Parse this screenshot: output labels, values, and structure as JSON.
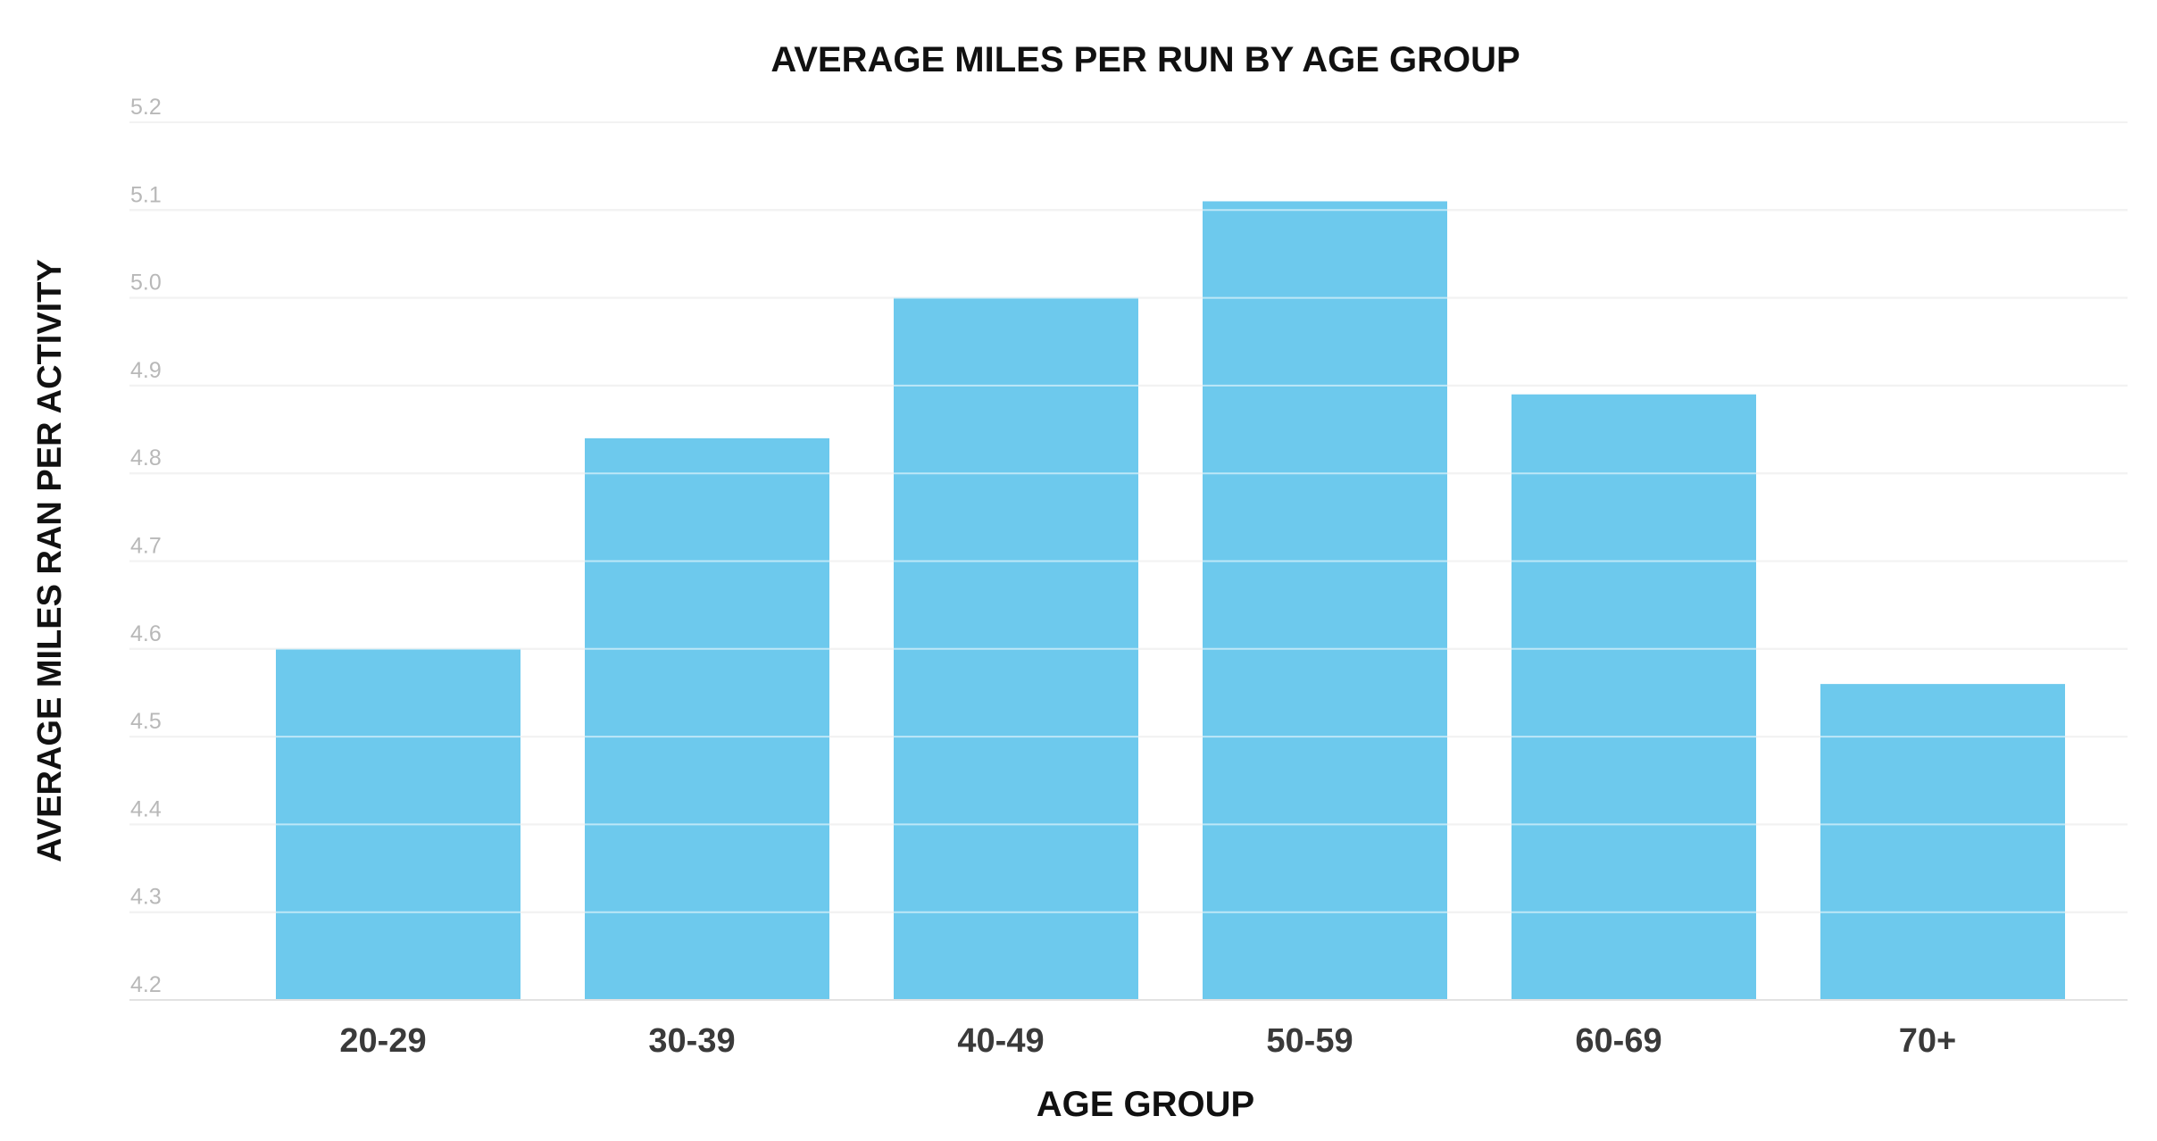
{
  "chart_data": {
    "type": "bar",
    "title": "AVERAGE MILES PER RUN BY AGE GROUP",
    "xlabel": "AGE GROUP",
    "ylabel": "AVERAGE MILES RAN PER ACTIVITY",
    "categories": [
      "20-29",
      "30-39",
      "40-49",
      "50-59",
      "60-69",
      "70+"
    ],
    "values": [
      4.6,
      4.84,
      5.0,
      5.11,
      4.89,
      4.56
    ],
    "ylim": [
      4.2,
      5.2
    ],
    "yticks": [
      "4.2",
      "4.3",
      "4.4",
      "4.5",
      "4.6",
      "4.7",
      "4.8",
      "4.9",
      "5.0",
      "5.1",
      "5.2"
    ],
    "grid": true,
    "bar_color": "#6dc9ed",
    "grid_color": "#e2e2e2"
  }
}
